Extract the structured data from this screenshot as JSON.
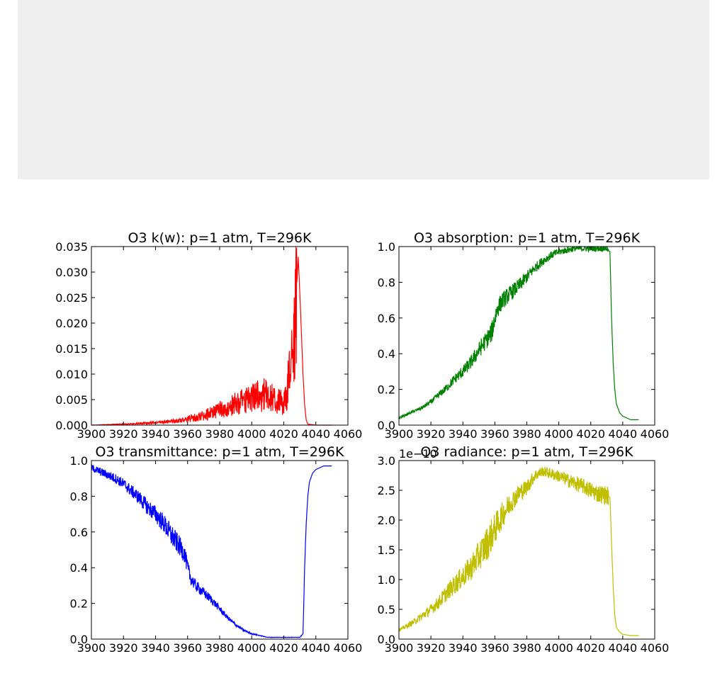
{
  "page": {
    "banner_color": "#eeeeee"
  },
  "chart_data": [
    {
      "type": "line",
      "title": "O3 k(w): p=1 atm, T=296K",
      "xlabel": "",
      "ylabel": "",
      "xlim": [
        3900,
        4060
      ],
      "ylim": [
        0,
        0.035
      ],
      "xticks": [
        3900,
        3920,
        3940,
        3960,
        3980,
        4000,
        4020,
        4040,
        4060
      ],
      "yticks": [
        0.0,
        0.005,
        0.01,
        0.015,
        0.02,
        0.025,
        0.03,
        0.035
      ],
      "ytick_labels": [
        "0.000",
        "0.005",
        "0.010",
        "0.015",
        "0.020",
        "0.025",
        "0.030",
        "0.035"
      ],
      "scale_label": "",
      "color": "#ff0000",
      "series": [
        {
          "x": [
            3900,
            3910,
            3920,
            3930,
            3940,
            3950,
            3955,
            3960,
            3965,
            3970,
            3975,
            3980,
            3985,
            3990,
            3995,
            4000,
            4003,
            4005,
            4008,
            4010,
            4013,
            4015,
            4018,
            4020,
            4022,
            4023,
            4025,
            4026,
            4027,
            4028,
            4029,
            4030,
            4031,
            4032,
            4033,
            4034,
            4035,
            4040,
            4050
          ],
          "y": [
            0.0,
            0.0001,
            0.0002,
            0.0003,
            0.0005,
            0.0007,
            0.0009,
            0.0012,
            0.0015,
            0.0019,
            0.0024,
            0.003,
            0.0036,
            0.0042,
            0.0048,
            0.0053,
            0.0058,
            0.0055,
            0.006,
            0.0056,
            0.0052,
            0.0047,
            0.0045,
            0.0042,
            0.0055,
            0.01,
            0.013,
            0.017,
            0.02,
            0.027,
            0.033,
            0.026,
            0.018,
            0.01,
            0.004,
            0.001,
            0.0002,
            0.0,
            0.0
          ],
          "jitter": 0.45
        }
      ]
    },
    {
      "type": "line",
      "title": "O3 absorption: p=1 atm, T=296K",
      "xlabel": "",
      "ylabel": "",
      "xlim": [
        3900,
        4060
      ],
      "ylim": [
        0,
        1.0
      ],
      "xticks": [
        3900,
        3920,
        3940,
        3960,
        3980,
        4000,
        4020,
        4040,
        4060
      ],
      "yticks": [
        0.0,
        0.2,
        0.4,
        0.6,
        0.8,
        1.0
      ],
      "ytick_labels": [
        "0.0",
        "0.2",
        "0.4",
        "0.6",
        "0.8",
        "1.0"
      ],
      "scale_label": "",
      "color": "#008000",
      "series": [
        {
          "x": [
            3900,
            3905,
            3910,
            3915,
            3920,
            3925,
            3930,
            3935,
            3940,
            3945,
            3950,
            3955,
            3958,
            3960,
            3962,
            3965,
            3970,
            3975,
            3980,
            3985,
            3990,
            3995,
            4000,
            4005,
            4010,
            4015,
            4020,
            4025,
            4027,
            4030,
            4032,
            4033,
            4034,
            4035,
            4036,
            4038,
            4040,
            4045,
            4050
          ],
          "y": [
            0.04,
            0.06,
            0.08,
            0.1,
            0.13,
            0.17,
            0.21,
            0.26,
            0.3,
            0.35,
            0.42,
            0.48,
            0.52,
            0.6,
            0.66,
            0.7,
            0.74,
            0.78,
            0.83,
            0.88,
            0.92,
            0.95,
            0.97,
            0.98,
            0.99,
            0.99,
            0.99,
            0.99,
            0.99,
            0.99,
            0.97,
            0.6,
            0.35,
            0.2,
            0.12,
            0.07,
            0.05,
            0.03,
            0.03
          ],
          "jitter": 0.12
        }
      ]
    },
    {
      "type": "line",
      "title": "O3 transmittance: p=1 atm, T=296K",
      "xlabel": "",
      "ylabel": "",
      "xlim": [
        3900,
        4060
      ],
      "ylim": [
        0,
        1.0
      ],
      "xticks": [
        3900,
        3920,
        3940,
        3960,
        3980,
        4000,
        4020,
        4040,
        4060
      ],
      "yticks": [
        0.0,
        0.2,
        0.4,
        0.6,
        0.8,
        1.0
      ],
      "ytick_labels": [
        "0.0",
        "0.2",
        "0.4",
        "0.6",
        "0.8",
        "1.0"
      ],
      "scale_label": "",
      "color": "#0000ff",
      "series": [
        {
          "x": [
            3900,
            3905,
            3910,
            3915,
            3920,
            3925,
            3930,
            3935,
            3940,
            3945,
            3950,
            3955,
            3958,
            3960,
            3962,
            3965,
            3970,
            3975,
            3980,
            3985,
            3990,
            3995,
            4000,
            4005,
            4010,
            4015,
            4020,
            4025,
            4027,
            4030,
            4032,
            4033,
            4034,
            4035,
            4036,
            4038,
            4040,
            4045,
            4050
          ],
          "y": [
            0.96,
            0.94,
            0.92,
            0.9,
            0.87,
            0.83,
            0.79,
            0.74,
            0.7,
            0.65,
            0.58,
            0.52,
            0.48,
            0.4,
            0.34,
            0.3,
            0.26,
            0.22,
            0.17,
            0.12,
            0.08,
            0.05,
            0.03,
            0.02,
            0.01,
            0.01,
            0.01,
            0.01,
            0.01,
            0.01,
            0.03,
            0.4,
            0.65,
            0.8,
            0.88,
            0.93,
            0.95,
            0.97,
            0.97
          ],
          "jitter": 0.12
        }
      ]
    },
    {
      "type": "line",
      "title": "O3 radiance: p=1 atm, T=296K",
      "xlabel": "",
      "ylabel": "",
      "xlim": [
        3900,
        4060
      ],
      "ylim": [
        0,
        3.0
      ],
      "xticks": [
        3900,
        3920,
        3940,
        3960,
        3980,
        4000,
        4020,
        4040,
        4060
      ],
      "yticks": [
        0.0,
        0.5,
        1.0,
        1.5,
        2.0,
        2.5,
        3.0
      ],
      "ytick_labels": [
        "0.0",
        "0.5",
        "1.0",
        "1.5",
        "2.0",
        "2.5",
        "3.0"
      ],
      "scale_label": "1e−10",
      "color": "#bfbf00",
      "series": [
        {
          "x": [
            3900,
            3905,
            3910,
            3915,
            3920,
            3925,
            3930,
            3935,
            3940,
            3945,
            3950,
            3955,
            3960,
            3965,
            3970,
            3975,
            3980,
            3985,
            3990,
            3995,
            4000,
            4005,
            4010,
            4015,
            4020,
            4025,
            4030,
            4032,
            4033,
            4034,
            4035,
            4036,
            4038,
            4040,
            4045,
            4050
          ],
          "y": [
            0.15,
            0.22,
            0.3,
            0.4,
            0.5,
            0.62,
            0.78,
            0.92,
            1.05,
            1.2,
            1.4,
            1.6,
            1.85,
            2.1,
            2.3,
            2.45,
            2.55,
            2.75,
            2.82,
            2.78,
            2.74,
            2.68,
            2.62,
            2.57,
            2.5,
            2.44,
            2.42,
            2.38,
            1.6,
            0.9,
            0.4,
            0.2,
            0.12,
            0.08,
            0.06,
            0.06
          ],
          "jitter": 0.3
        }
      ]
    }
  ]
}
